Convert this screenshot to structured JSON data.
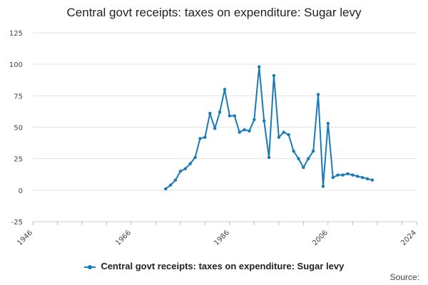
{
  "chart_data": {
    "type": "line",
    "title": "Central govt receipts: taxes on expenditure: Sugar levy",
    "xlabel": "",
    "ylabel": "",
    "xlim": [
      1946,
      2024
    ],
    "ylim": [
      -25,
      125
    ],
    "x_ticks": [
      "1946",
      "1966",
      "1986",
      "2006",
      "2024"
    ],
    "y_ticks": [
      "125",
      "100",
      "75",
      "50",
      "25",
      "0",
      "-25"
    ],
    "grid": true,
    "legend_position": "bottom",
    "color": "#1a7ab5",
    "series": [
      {
        "name": "Central govt receipts: taxes on expenditure: Sugar levy",
        "x": [
          1973,
          1974,
          1975,
          1976,
          1977,
          1978,
          1979,
          1980,
          1981,
          1982,
          1983,
          1984,
          1985,
          1986,
          1987,
          1988,
          1989,
          1990,
          1991,
          1992,
          1993,
          1994,
          1995,
          1996,
          1997,
          1998,
          1999,
          2000,
          2001,
          2002,
          2003,
          2004,
          2005,
          2006,
          2007,
          2008,
          2009,
          2010,
          2011,
          2012,
          2013,
          2014,
          2015,
          2016,
          2017
        ],
        "values": [
          1,
          4,
          8,
          15,
          17,
          21,
          26,
          41,
          42,
          61,
          49,
          62,
          80,
          59,
          59,
          46,
          48,
          47,
          56,
          98,
          55,
          26,
          91,
          42,
          46,
          44,
          31,
          25,
          18,
          25,
          31,
          76,
          3,
          53,
          10,
          12,
          12,
          13,
          12,
          11,
          10,
          9,
          8,
          null,
          null
        ]
      }
    ]
  },
  "legend": {
    "label": "Central govt receipts: taxes on expenditure: Sugar levy"
  },
  "footer": {
    "source_label": "Source:"
  }
}
